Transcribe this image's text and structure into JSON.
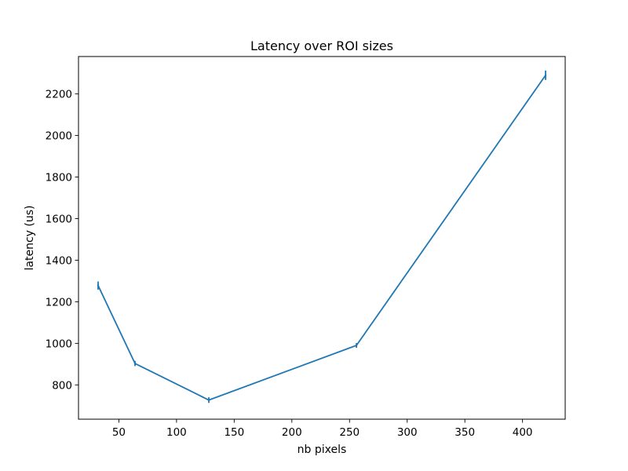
{
  "chart_data": {
    "type": "line",
    "title": "Latency over ROI sizes",
    "xlabel": "nb pixels",
    "ylabel": "latency (us)",
    "xlim": [
      15,
      437
    ],
    "ylim": [
      635,
      2380
    ],
    "xticks": [
      50,
      100,
      150,
      200,
      250,
      300,
      350,
      400
    ],
    "yticks": [
      800,
      1000,
      1200,
      1400,
      1600,
      1800,
      2000,
      2200
    ],
    "grid": false,
    "line_color": "#1f77b4",
    "series": [
      {
        "x": [
          32,
          64,
          128,
          256,
          420
        ],
        "y": [
          1278,
          903,
          727,
          990,
          2290
        ],
        "yerr": [
          12,
          5,
          6,
          4,
          15
        ]
      }
    ]
  }
}
